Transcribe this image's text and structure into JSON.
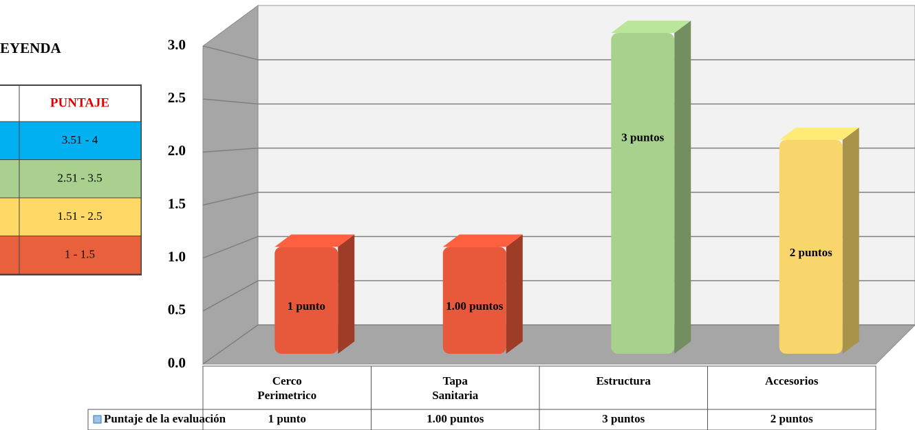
{
  "legend_table": {
    "title": "LEYENDA",
    "header": "PUNTAJE",
    "rows": [
      {
        "range": "3.51 - 4",
        "color": "#00b0f0"
      },
      {
        "range": "2.51 - 3.5",
        "color": "#a9d08e"
      },
      {
        "range": "1.51 - 2.5",
        "color": "#ffd966"
      },
      {
        "range": "1 - 1.5",
        "color": "#e8603c"
      }
    ]
  },
  "chart_data": {
    "type": "bar3d",
    "categories": [
      "Cerco Perimetrico",
      "Tapa Sanitaria",
      "Estructura",
      "Accesorios"
    ],
    "series": [
      {
        "name": "Puntaje de la evaluación",
        "colors": [
          "#e8583a",
          "#e8583a",
          "#a9d18e",
          "#f9d66b"
        ],
        "values": [
          1,
          1,
          3,
          2
        ],
        "value_labels": [
          "1 punto",
          "1.00 puntos",
          "3 puntos",
          "2 puntos"
        ]
      }
    ],
    "ylim": [
      0,
      3
    ],
    "yticks": [
      {
        "value": 0,
        "label": "0.0"
      },
      0.5,
      {
        "value": 1,
        "label": "1.0"
      },
      1.5,
      {
        "value": 2,
        "label": "2.0"
      },
      2.5,
      {
        "value": 3,
        "label": "3.0"
      }
    ],
    "grid": true
  }
}
